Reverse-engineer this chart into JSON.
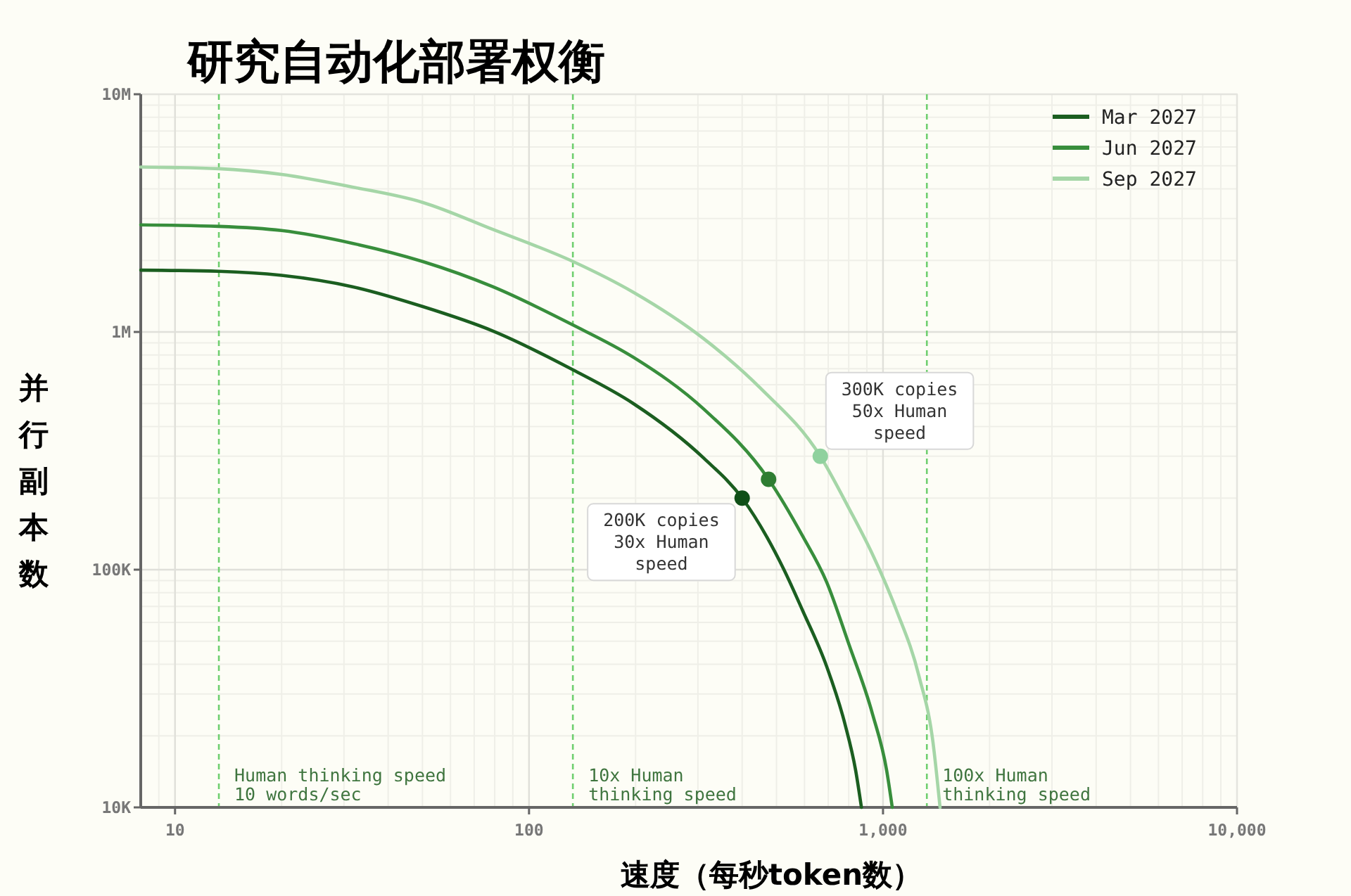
{
  "chart_data": {
    "type": "line",
    "title": "研究自动化部署权衡",
    "xlabel": "速度（每秒token数）",
    "ylabel": "并行副本数",
    "log": "xy",
    "xlim": [
      8,
      10000
    ],
    "ylim": [
      10000,
      10000000
    ],
    "xticks": [
      10,
      100,
      {
        "value": 1000,
        "label": "1,000"
      },
      {
        "value": 10000,
        "label": "10,000"
      }
    ],
    "yticks": [
      {
        "value": 10000,
        "label": "10K"
      },
      {
        "value": 100000,
        "label": "100K"
      },
      {
        "value": 1000000,
        "label": "1M"
      },
      {
        "value": 10000000,
        "label": "10M"
      }
    ],
    "grid": true,
    "legend": "top right",
    "series": [
      {
        "name": "Mar 2027",
        "color": "#1b5e20",
        "x": [
          8,
          13.3,
          20,
          31.7,
          50,
          79,
          133,
          197,
          312,
          400,
          525,
          592,
          693,
          779,
          837,
          869
        ],
        "values": [
          1820000,
          1800000,
          1730000,
          1550000,
          1280000,
          1010000,
          693000,
          500000,
          294000,
          200000,
          100000,
          67600,
          39200,
          22700,
          14300,
          10000
        ]
      },
      {
        "name": "Jun 2027",
        "color": "#388e3c",
        "x": [
          8,
          13.3,
          20,
          31.7,
          50,
          79,
          133,
          197,
          312,
          475,
          592,
          693,
          800,
          934,
          1024,
          1062
        ],
        "values": [
          2820000,
          2780000,
          2670000,
          2360000,
          1980000,
          1550000,
          1070000,
          783000,
          473000,
          240000,
          139000,
          88700,
          48800,
          24700,
          14300,
          10000
        ]
      },
      {
        "name": "Sep 2027",
        "color": "#a5d6a7",
        "x": [
          8,
          13.3,
          20,
          31.7,
          50,
          79,
          133,
          197,
          312,
          450,
          665,
          800,
          934,
          1091,
          1264,
          1384,
          1449
        ],
        "values": [
          4940000,
          4860000,
          4600000,
          4070000,
          3510000,
          2700000,
          1980000,
          1470000,
          935000,
          581000,
          300000,
          182000,
          116000,
          67600,
          35600,
          18800,
          10000
        ]
      },
      {
        "type": "scatter",
        "marker": "circle",
        "colors": [
          "#0f4f17",
          "#2e7d32",
          "#8fd19e"
        ],
        "x": [
          400,
          475,
          665
        ],
        "values": [
          200000,
          240000,
          300000
        ]
      }
    ],
    "ref_lines": [
      {
        "axis": "x",
        "value": 13.3,
        "label": "Human thinking speed\n10 words/sec",
        "color": "#6fcf6f",
        "line_style": "dashed"
      },
      {
        "axis": "x",
        "value": 133,
        "label": "10x Human\nthinking speed",
        "color": "#6fcf6f",
        "line_style": "dashed"
      },
      {
        "axis": "x",
        "value": 1330,
        "label": "100x Human\nthinking speed",
        "color": "#6fcf6f",
        "line_style": "dashed"
      }
    ],
    "annotations": [
      {
        "text": "200K copies\n30x Human\nspeed",
        "x": 400,
        "y": 200000
      },
      {
        "text": "300K copies\n50x Human\nspeed",
        "x": 665,
        "y": 300000
      }
    ]
  }
}
